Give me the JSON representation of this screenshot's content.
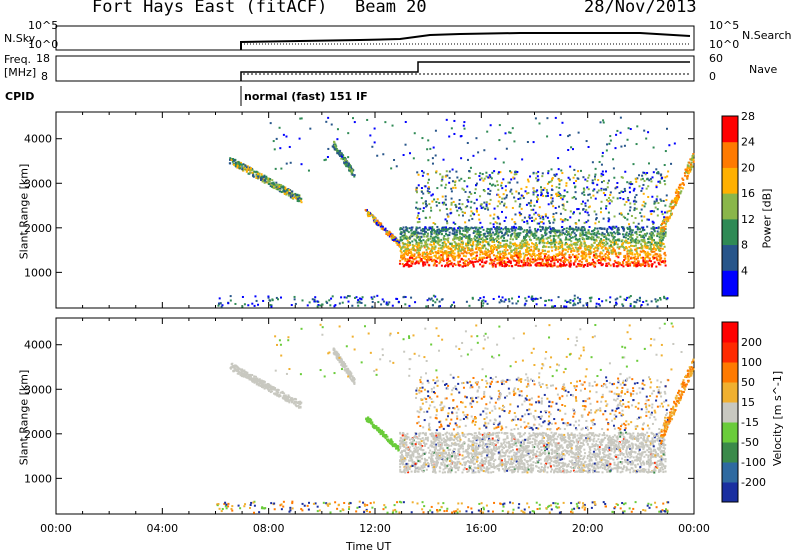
{
  "header": {
    "radar": "Fort Hays East (fitACF)",
    "beam": "Beam 20",
    "date": "28/Nov/2013"
  },
  "nsky_panel": {
    "left_label": "N.Sky",
    "right_label": "N.Search",
    "left_ticks": [
      "10^5",
      "10^0"
    ],
    "right_ticks": [
      "10^5",
      "10^0"
    ]
  },
  "freq_panel": {
    "left_label_line1": "Freq.",
    "left_label_line2": "[MHz]",
    "right_label": "Nave",
    "left_ticks": [
      "18",
      "8"
    ],
    "right_ticks": [
      "60",
      "0"
    ]
  },
  "cpid": {
    "label": "CPID",
    "value": "normal (fast) 151 IF"
  },
  "chart_data": [
    {
      "type": "heatmap",
      "title": "",
      "ylabel": "Slant Range [km]",
      "ylim": [
        200,
        4600
      ],
      "yticks": [
        "1000",
        "2000",
        "3000",
        "4000"
      ],
      "colorbar": {
        "label": "Power [dB]",
        "ticks": [
          "4",
          "8",
          "12",
          "16",
          "20",
          "24",
          "28"
        ],
        "colors": [
          "#0000ff",
          "#27558a",
          "#2f8a55",
          "#8ab64a",
          "#ffb000",
          "#ff7a00",
          "#ff0000"
        ]
      },
      "features": [
        {
          "start_ut": 6.5,
          "end_ut": 9.0,
          "range_start": 3500,
          "range_end": 2700
        },
        {
          "start_ut": 11.6,
          "end_ut": 12.9,
          "range_start": 2400,
          "range_end": 1650
        },
        {
          "start_ut": 13.0,
          "end_ut": 22.8,
          "range_start": 1300,
          "range_end": 2000
        }
      ]
    },
    {
      "type": "heatmap",
      "title": "",
      "ylabel": "Slant Range [km]",
      "ylim": [
        200,
        4600
      ],
      "yticks": [
        "1000",
        "2000",
        "3000",
        "4000"
      ],
      "colorbar": {
        "label": "Velocity [m s^-1]",
        "ticks": [
          "200",
          "100",
          "50",
          "15",
          "-15",
          "-50",
          "-100",
          "-200"
        ],
        "colors": [
          "#1a2fa0",
          "#2f6aa0",
          "#3a8a4a",
          "#6acc3a",
          "#c8c8c0",
          "#f0b030",
          "#ff7a00",
          "#ff2a00",
          "#ff0000"
        ]
      }
    }
  ],
  "time_axis": {
    "xlabel": "Time UT",
    "xlim": [
      0,
      24
    ],
    "ticks": [
      "00:00",
      "04:00",
      "08:00",
      "12:00",
      "16:00",
      "20:00",
      "00:00"
    ]
  }
}
